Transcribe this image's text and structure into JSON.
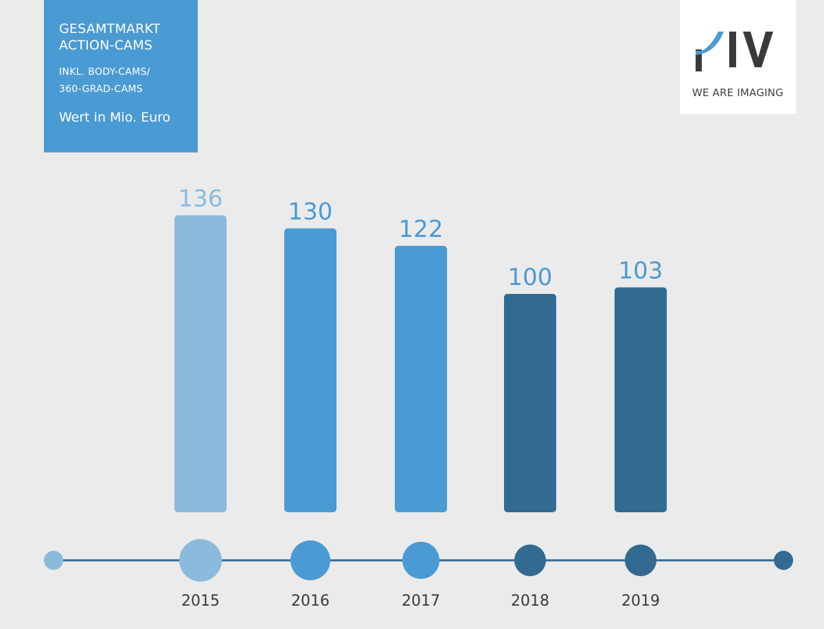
{
  "header": {
    "title_line1": "GESAMTMARKT",
    "title_line2": "ACTION-CAMS",
    "subtitle_line1": "INKL. BODY-CAMS/",
    "subtitle_line2": "360-GRAD-CAMS",
    "unit_label": "Wert in Mio. Euro"
  },
  "logo": {
    "wordmark": "PIV",
    "tagline": "WE ARE IMAGING"
  },
  "colors": {
    "background": "#ebebeb",
    "title_box": "#4a9ad4",
    "light_blue": "#8abbdc",
    "mid_blue": "#4a9ad4",
    "dark_blue": "#336a92"
  },
  "chart_data": {
    "type": "bar",
    "categories": [
      "2015",
      "2016",
      "2017",
      "2018",
      "2019"
    ],
    "values": [
      136,
      130,
      122,
      100,
      103
    ],
    "bar_colors": [
      "#8abbdc",
      "#4a9ad4",
      "#4a9ad4",
      "#336a92",
      "#336a92"
    ],
    "label_colors": [
      "#8abbdc",
      "#4a9ad4",
      "#4a9ad4",
      "#4a9ad4",
      "#4a9ad4"
    ],
    "title": "GESAMTMARKT ACTION-CAMS",
    "subtitle": "INKL. BODY-CAMS/ 360-GRAD-CAMS",
    "ylabel": "Wert in Mio. Euro",
    "xlabel": "",
    "grid": false,
    "data_labels": true
  }
}
